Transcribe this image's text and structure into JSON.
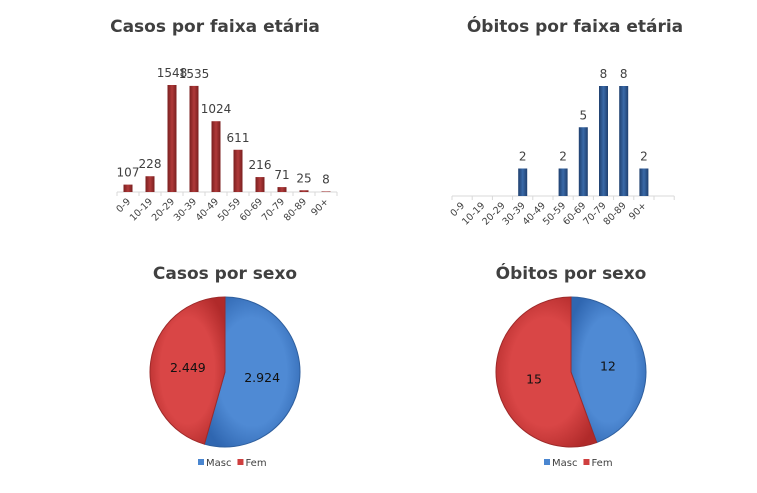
{
  "chart_data": [
    {
      "type": "bar",
      "title": "Casos por faixa etária",
      "categories": [
        "0-9",
        "10-19",
        "20-29",
        "30-39",
        "40-49",
        "50-59",
        "60-69",
        "70-79",
        "80-89",
        "90+"
      ],
      "values": [
        107,
        228,
        1548,
        1535,
        1024,
        611,
        216,
        71,
        25,
        8
      ],
      "color": "#9b2d2d",
      "grid": false
    },
    {
      "type": "bar",
      "title": "Óbitos por faixa etária",
      "categories": [
        "0-9",
        "10-19",
        "20-29",
        "30-39",
        "40-49",
        "50-59",
        "60-69",
        "70-79",
        "80-89",
        "90+"
      ],
      "values": [
        0,
        0,
        0,
        2,
        0,
        2,
        5,
        8,
        8,
        2
      ],
      "color": "#2f5a92",
      "grid": false
    },
    {
      "type": "pie",
      "title": "Casos por sexo",
      "slices": [
        {
          "name": "Masc",
          "value": 2924,
          "label": "2.924",
          "color": "#4a86d0"
        },
        {
          "name": "Fem",
          "value": 2449,
          "label": "2.449",
          "color": "#cf3f3f"
        }
      ],
      "legend": "bottom"
    },
    {
      "type": "pie",
      "title": "Óbitos por sexo",
      "slices": [
        {
          "name": "Masc",
          "value": 12,
          "label": "12",
          "color": "#4a86d0"
        },
        {
          "name": "Fem",
          "value": 15,
          "label": "15",
          "color": "#cf3f3f"
        }
      ],
      "legend": "bottom"
    }
  ]
}
